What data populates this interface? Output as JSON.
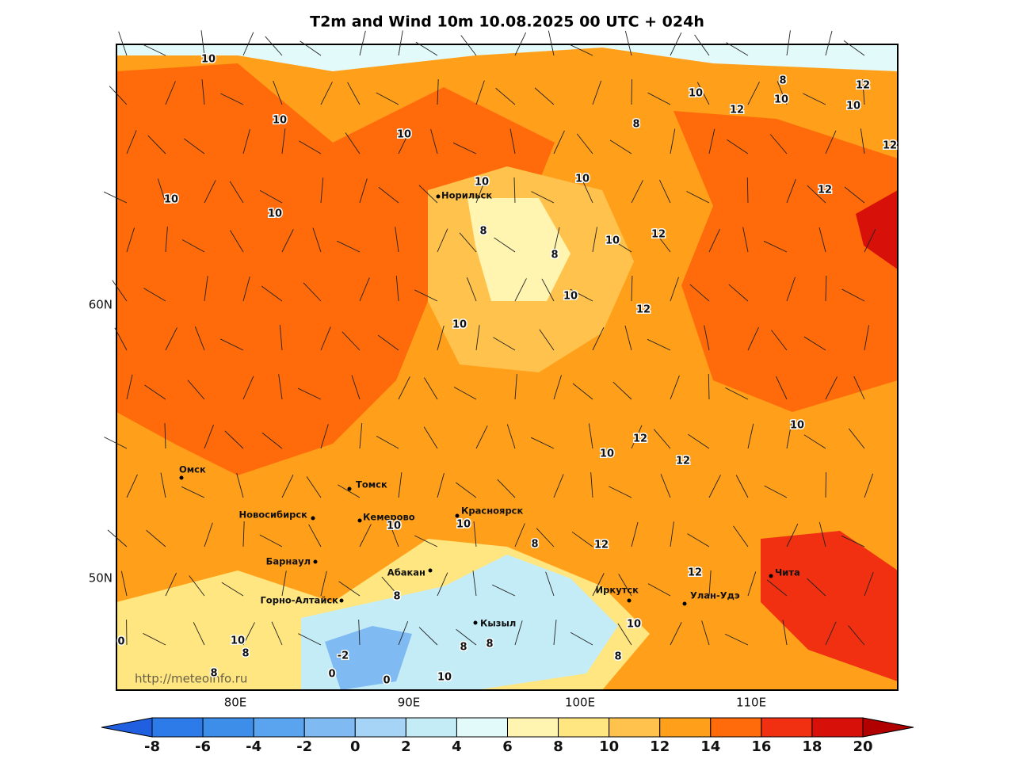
{
  "title": "T2m and Wind 10m 10.08.2025 00 UTC + 024h",
  "lon_labels": [
    "80E",
    "90E",
    "100E",
    "110E"
  ],
  "lat_labels": [
    "60N",
    "50N"
  ],
  "cities": [
    "Норильск",
    "Омск",
    "Томск",
    "Новосибирск",
    "Кемерово",
    "Красноярск",
    "Барнаул",
    "Горно-Алтайск",
    "Абакан",
    "Кызыл",
    "Иркутск",
    "Улан-Удэ",
    "Чита"
  ],
  "contour_labels": [
    10,
    10,
    10,
    10,
    10,
    10,
    8,
    8,
    10,
    10,
    12,
    8,
    10,
    12,
    8,
    10,
    12,
    10,
    12,
    12,
    10,
    10,
    12,
    12,
    10,
    12,
    10,
    10,
    10,
    8,
    12,
    12,
    8,
    10,
    8,
    8,
    8,
    10,
    8,
    0,
    8,
    -2,
    0,
    0,
    10
  ],
  "watermark": "http://meteoinfo.ru",
  "colorbar": {
    "ticks": [
      -8,
      -6,
      -4,
      -2,
      0,
      2,
      4,
      6,
      8,
      10,
      12,
      14,
      16,
      18,
      20
    ],
    "colors": [
      "#1f5fe0",
      "#2c7be8",
      "#3d8ee8",
      "#5aa3ee",
      "#7fbaf2",
      "#a5d4f7",
      "#c4ecf7",
      "#e2fafa",
      "#fff5b0",
      "#ffe680",
      "#ffc34d",
      "#ff9f1a",
      "#ff6a0a",
      "#f03010",
      "#d8100a",
      "#b00000"
    ]
  }
}
